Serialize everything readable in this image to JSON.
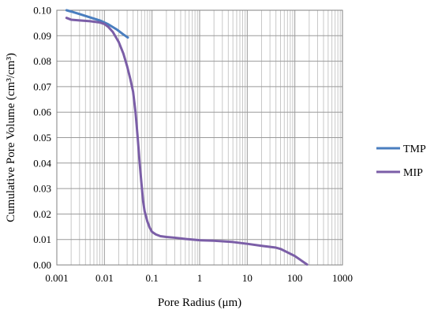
{
  "chart_data": {
    "type": "line",
    "xscale": "log",
    "xlim": [
      0.001,
      1000
    ],
    "ylim": [
      0,
      0.1
    ],
    "xlabel": "Pore Radius (μm)",
    "ylabel": "Cumulative Pore Volume (cm³/cm³)",
    "x_ticks": [
      "0.001",
      "0.01",
      "0.1",
      "1",
      "10",
      "100",
      "1000"
    ],
    "y_ticks": [
      "0.00",
      "0.01",
      "0.02",
      "0.03",
      "0.04",
      "0.05",
      "0.06",
      "0.07",
      "0.08",
      "0.09",
      "0.10"
    ],
    "grid": true,
    "legend_position": "right",
    "series": [
      {
        "name": "TMP",
        "color": "#4a7ebf",
        "points": [
          [
            0.0016,
            0.1
          ],
          [
            0.002,
            0.0995
          ],
          [
            0.003,
            0.0985
          ],
          [
            0.005,
            0.0972
          ],
          [
            0.008,
            0.096
          ],
          [
            0.012,
            0.0945
          ],
          [
            0.018,
            0.0925
          ],
          [
            0.025,
            0.0905
          ],
          [
            0.031,
            0.0893
          ]
        ]
      },
      {
        "name": "MIP",
        "color": "#7b5ea7",
        "points": [
          [
            0.0016,
            0.097
          ],
          [
            0.002,
            0.0963
          ],
          [
            0.003,
            0.096
          ],
          [
            0.005,
            0.0957
          ],
          [
            0.008,
            0.0952
          ],
          [
            0.01,
            0.0946
          ],
          [
            0.012,
            0.0935
          ],
          [
            0.015,
            0.0915
          ],
          [
            0.02,
            0.0875
          ],
          [
            0.025,
            0.083
          ],
          [
            0.03,
            0.078
          ],
          [
            0.035,
            0.073
          ],
          [
            0.04,
            0.068
          ],
          [
            0.045,
            0.06
          ],
          [
            0.05,
            0.05
          ],
          [
            0.055,
            0.04
          ],
          [
            0.06,
            0.032
          ],
          [
            0.065,
            0.025
          ],
          [
            0.07,
            0.021
          ],
          [
            0.08,
            0.017
          ],
          [
            0.09,
            0.0145
          ],
          [
            0.1,
            0.013
          ],
          [
            0.12,
            0.012
          ],
          [
            0.15,
            0.0113
          ],
          [
            0.2,
            0.011
          ],
          [
            0.3,
            0.0107
          ],
          [
            0.5,
            0.0102
          ],
          [
            1,
            0.0097
          ],
          [
            2,
            0.0095
          ],
          [
            5,
            0.009
          ],
          [
            10,
            0.0083
          ],
          [
            20,
            0.0075
          ],
          [
            40,
            0.0068
          ],
          [
            50,
            0.0063
          ],
          [
            100,
            0.0035
          ],
          [
            180,
            0.0002
          ]
        ]
      }
    ]
  }
}
